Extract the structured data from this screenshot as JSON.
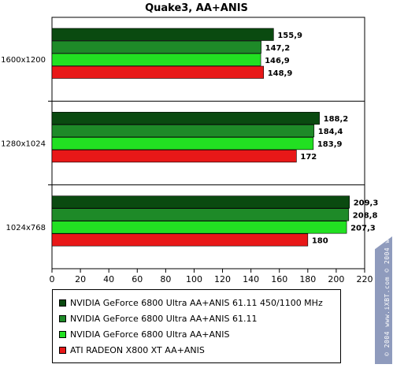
{
  "chart_data": {
    "type": "bar",
    "orientation": "horizontal",
    "title": "Quake3, AA+ANIS",
    "categories": [
      "1600x1200",
      "1280x1024",
      "1024x768"
    ],
    "series": [
      {
        "name": "NVIDIA GeForce 6800 Ultra AA+ANIS 61.11 450/1100 MHz",
        "color": "#0a4a10",
        "values": [
          155.9,
          188.2,
          209.3
        ],
        "labels": [
          "155,9",
          "188,2",
          "209,3"
        ]
      },
      {
        "name": "NVIDIA GeForce 6800 Ultra AA+ANIS 61.11",
        "color": "#1e8a28",
        "values": [
          147.2,
          184.4,
          208.8
        ],
        "labels": [
          "147,2",
          "184,4",
          "208,8"
        ]
      },
      {
        "name": "NVIDIA GeForce 6800 Ultra AA+ANIS",
        "color": "#22e022",
        "values": [
          146.9,
          183.9,
          207.3
        ],
        "labels": [
          "146,9",
          "183,9",
          "207,3"
        ]
      },
      {
        "name": "ATI RADEON X800 XT AA+ANIS",
        "color": "#e81818",
        "values": [
          148.9,
          172,
          180
        ],
        "labels": [
          "148,9",
          "172",
          "180"
        ]
      }
    ],
    "xlim": [
      0,
      220
    ],
    "xticks": [
      0,
      20,
      40,
      60,
      80,
      100,
      120,
      140,
      160,
      180,
      200,
      220
    ],
    "grid": false,
    "legend": "bottom"
  },
  "watermark": "© 2004 www.iXBT.com  © 2004 www.Digit-Life.com"
}
